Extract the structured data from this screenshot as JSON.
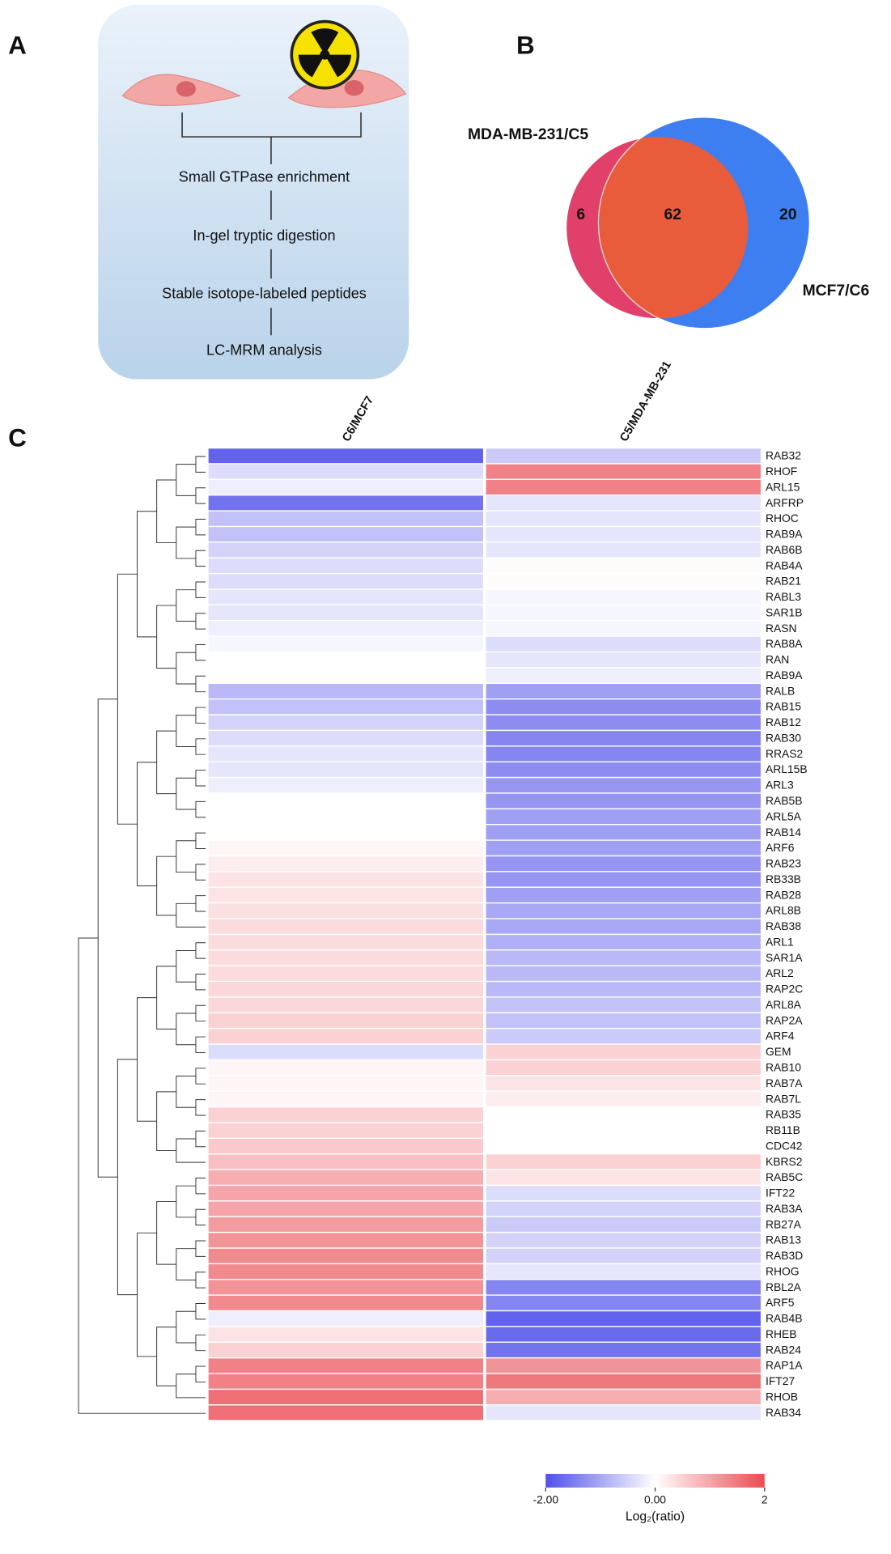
{
  "panel_labels": [
    "A",
    "B",
    "C"
  ],
  "workflow": {
    "steps": [
      "Small GTPase enrichment",
      "In-gel tryptic digestion",
      "Stable isotope-labeled peptides",
      "LC-MRM analysis"
    ]
  },
  "chart_data": [
    {
      "type": "venn",
      "sets": [
        "MDA-MB-231/C5",
        "MCF7/C6"
      ],
      "values": [
        6,
        62,
        20
      ],
      "colors": [
        "#e0406a",
        "#3d7ff0",
        "#e85c3c"
      ]
    },
    {
      "type": "heatmap",
      "categories": [
        "RAB32",
        "RHOF",
        "ARL15",
        "ARFRP",
        "RHOC",
        "RAB9A",
        "RAB6B",
        "RAB4A",
        "RAB21",
        "RABL3",
        "SAR1B",
        "RASN",
        "RAB8A",
        "RAN",
        "RAB9A",
        "RALB",
        "RAB15",
        "RAB12",
        "RAB30",
        "RRAS2",
        "ARL15B",
        "ARL3",
        "RAB5B",
        "ARL5A",
        "RAB14",
        "ARF6",
        "RAB23",
        "RB33B",
        "RAB28",
        "ARL8B",
        "RAB38",
        "ARL1",
        "SAR1A",
        "ARL2",
        "RAP2C",
        "ARL8A",
        "RAP2A",
        "ARF4",
        "GEM",
        "RAB10",
        "RAB7A",
        "RAB7L",
        "RAB35",
        "RB11B",
        "CDC42",
        "KBRS2",
        "RAB5C",
        "IFT22",
        "RAB3A",
        "RB27A",
        "RAB13",
        "RAB3D",
        "RHOG",
        "RBL2A",
        "ARF5",
        "RAB4B",
        "RHEB",
        "RAB24",
        "RAP1A",
        "IFT27",
        "RHOB",
        "RAB34"
      ],
      "series": [
        {
          "name": "C6/MCF7",
          "values": [
            -1.8,
            -0.4,
            -0.2,
            -1.6,
            -0.7,
            -0.7,
            -0.5,
            -0.4,
            -0.4,
            -0.3,
            -0.3,
            -0.2,
            -0.1,
            0,
            0,
            -0.8,
            -0.7,
            -0.5,
            -0.4,
            -0.3,
            -0.3,
            -0.2,
            0,
            0,
            0,
            0.1,
            0.2,
            0.3,
            0.3,
            0.35,
            0.4,
            0.4,
            0.4,
            0.4,
            0.45,
            0.45,
            0.5,
            0.5,
            -0.4,
            0.1,
            0.1,
            0.1,
            0.5,
            0.5,
            0.6,
            0.7,
            0.9,
            1.0,
            1.0,
            1.1,
            1.2,
            1.3,
            1.3,
            1.2,
            1.3,
            -0.2,
            0.3,
            0.5,
            1.4,
            1.4,
            1.6,
            1.6
          ]
        },
        {
          "name": "C5/MDA-MB-231",
          "values": [
            -0.6,
            1.4,
            1.4,
            -0.3,
            -0.3,
            -0.3,
            -0.3,
            0.05,
            0.05,
            -0.1,
            -0.1,
            -0.1,
            -0.4,
            -0.3,
            -0.2,
            -1.1,
            -1.3,
            -1.3,
            -1.4,
            -1.4,
            -1.3,
            -1.2,
            -1.2,
            -1.1,
            -1.1,
            -1.1,
            -1.2,
            -1.2,
            -1.1,
            -1.0,
            -1.0,
            -0.9,
            -0.8,
            -0.8,
            -0.8,
            -0.7,
            -0.7,
            -0.6,
            0.5,
            0.5,
            0.3,
            0.2,
            0,
            0,
            0,
            0.5,
            0.3,
            -0.4,
            -0.5,
            -0.6,
            -0.5,
            -0.5,
            -0.3,
            -1.4,
            -1.4,
            -1.8,
            -1.7,
            -1.6,
            1.2,
            1.5,
            0.9,
            -0.3
          ]
        }
      ],
      "colorbar": {
        "label": "Log₂(ratio)",
        "lim": [
          -2,
          2
        ],
        "ticks": [
          {
            "value": -2,
            "label": "-2.00"
          },
          {
            "value": 0,
            "label": "0.00"
          },
          2
        ],
        "colors": [
          "#5050ea",
          "#ffffff",
          "#ea4b52"
        ]
      }
    }
  ]
}
